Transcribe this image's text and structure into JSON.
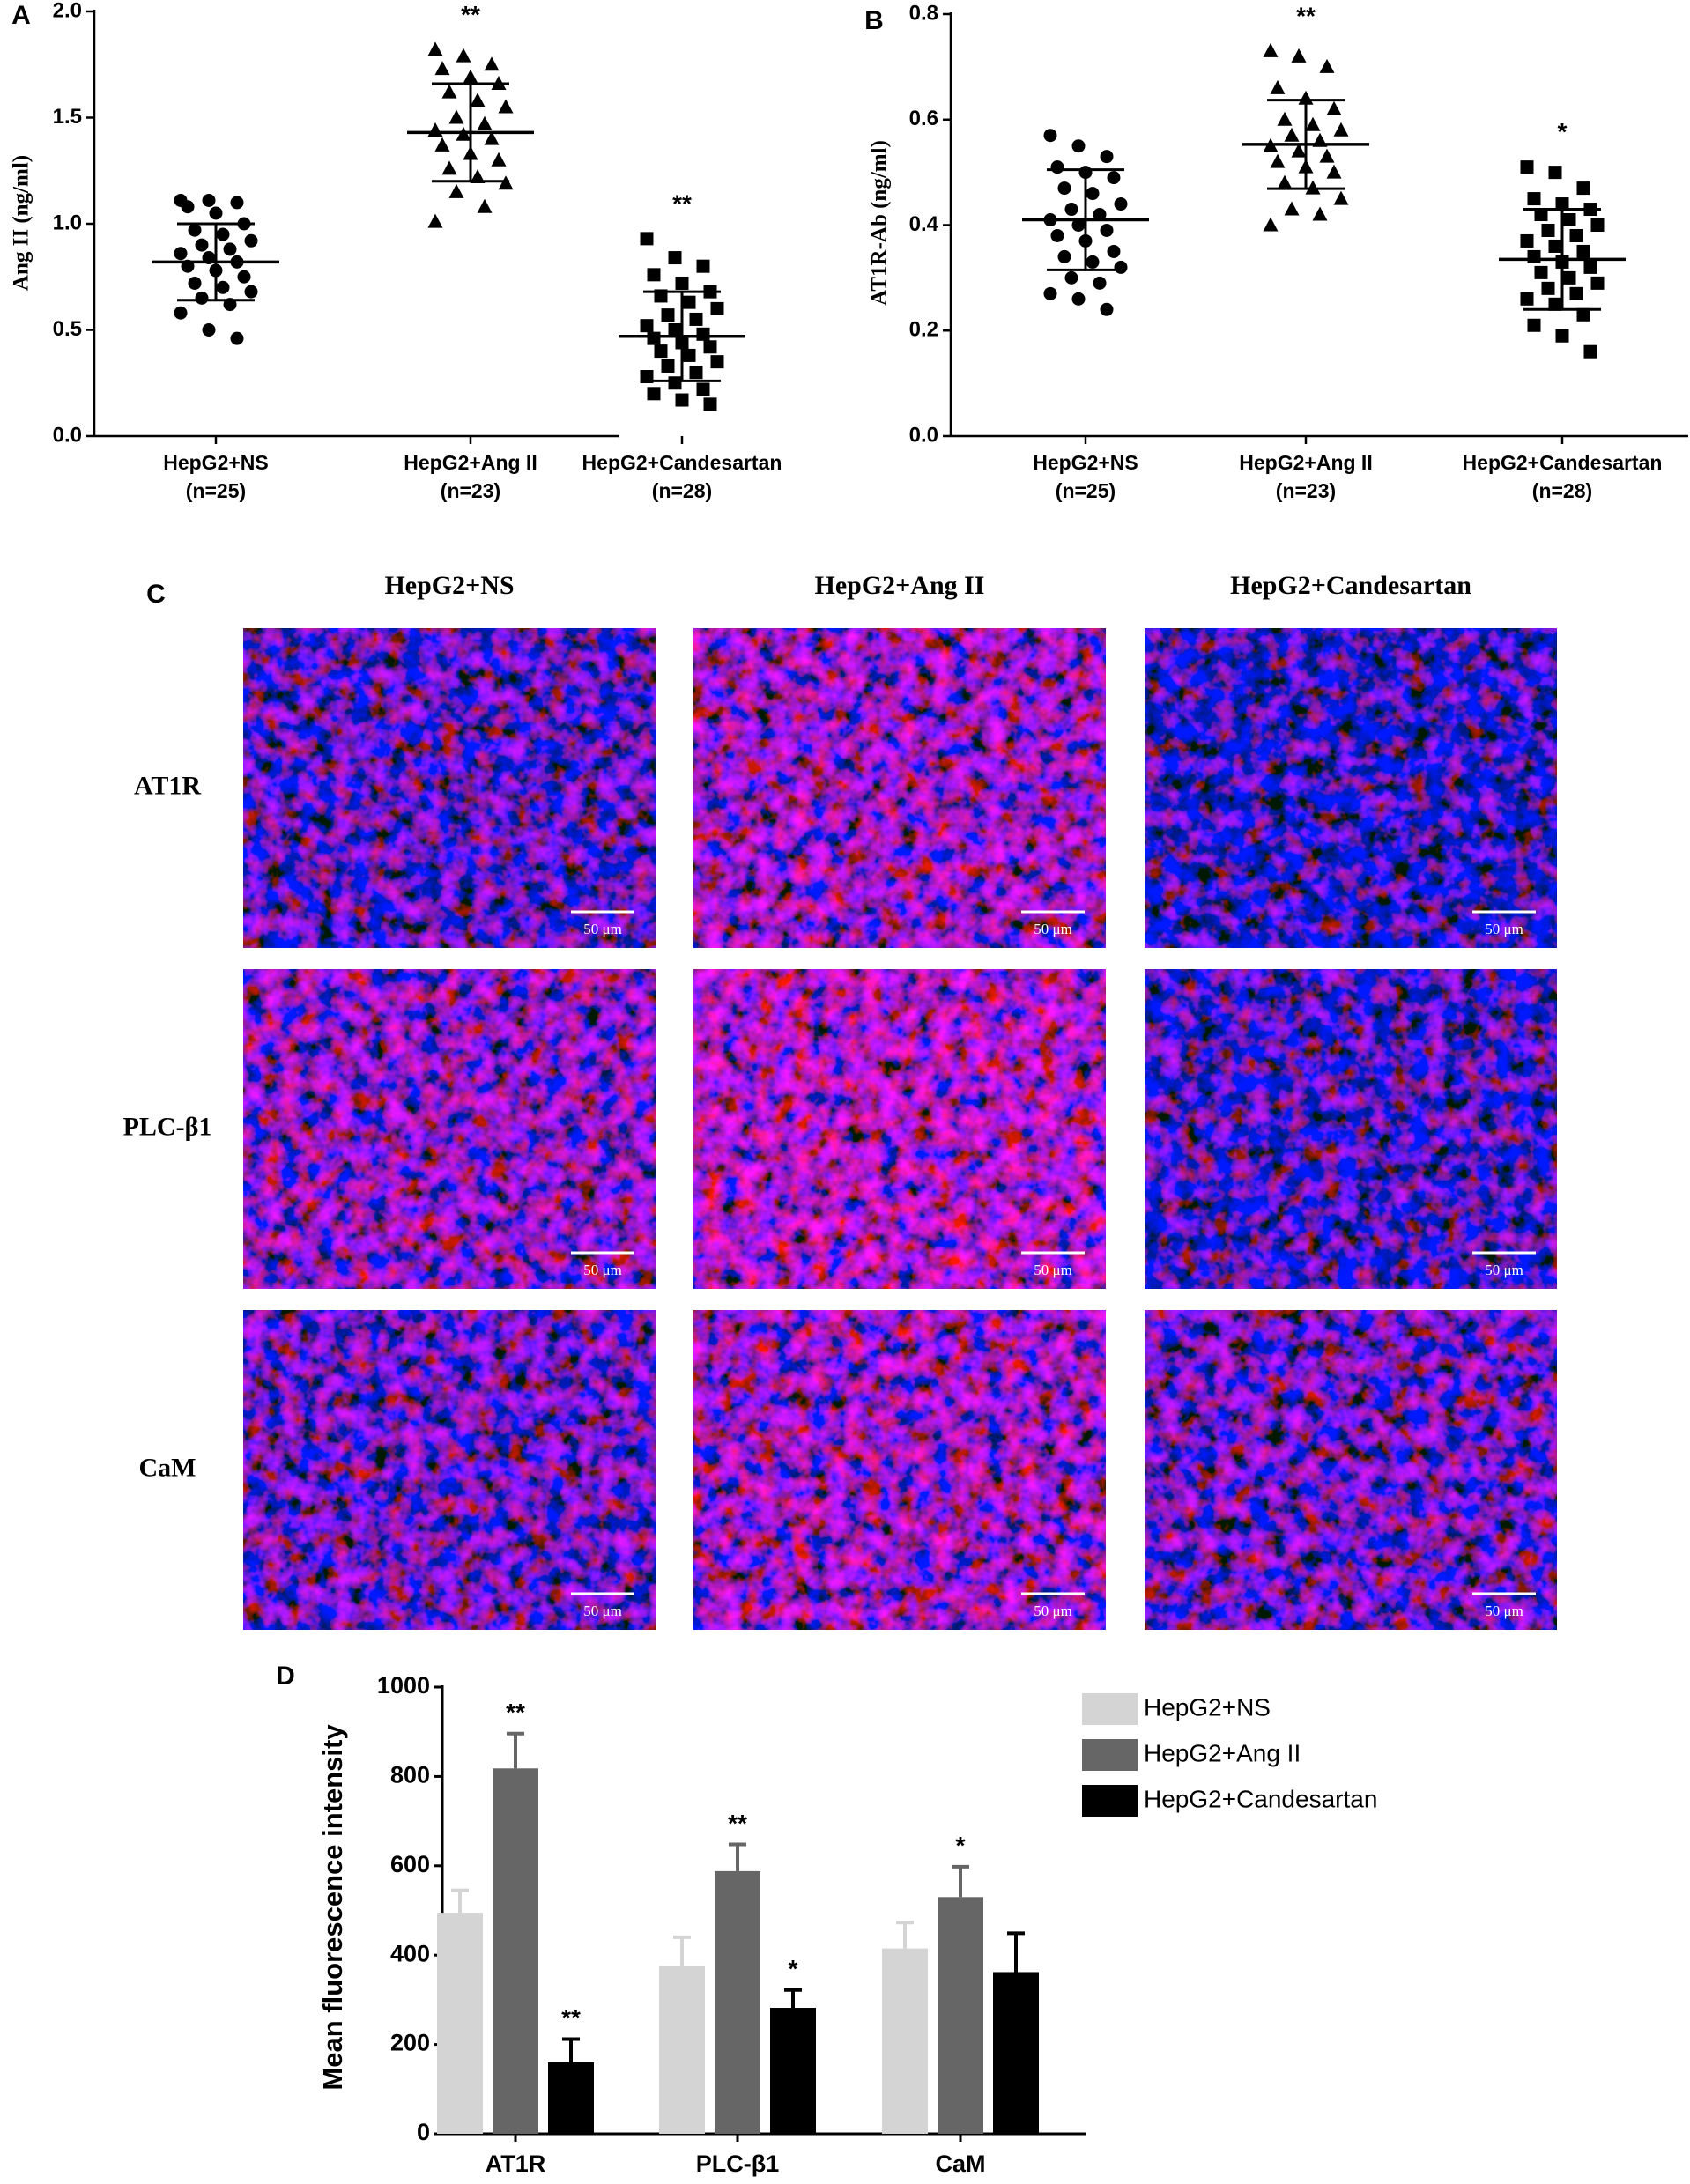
{
  "chart_data": [
    {
      "type": "dotplot",
      "panel_label": "A",
      "y_label": "Ang II (ng/ml)",
      "categories": [
        "HepG2+NS",
        "HepG2+Ang II",
        "HepG2+Candesartan"
      ],
      "n_labels": [
        "(n=25)",
        "(n=23)",
        "(n=28)"
      ],
      "ylim": [
        0,
        2
      ],
      "yticks": [
        {
          "value": 0,
          "label": "0.0"
        },
        0.5,
        {
          "value": 1,
          "label": "1.0"
        },
        1.5,
        {
          "value": 2,
          "label": "2.0"
        }
      ],
      "groups": [
        {
          "marker": "circle",
          "mean": 0.82,
          "sd": 0.18,
          "values": [
            1.11,
            1.11,
            1.1,
            1.08,
            1.05,
            1.0,
            0.97,
            0.95,
            0.92,
            0.9,
            0.88,
            0.86,
            0.84,
            0.82,
            0.8,
            0.78,
            0.75,
            0.72,
            0.7,
            0.68,
            0.65,
            0.62,
            0.58,
            0.5,
            0.46
          ]
        },
        {
          "marker": "triangle",
          "mean": 1.43,
          "sd": 0.23,
          "annotation": "**",
          "values": [
            1.82,
            1.79,
            1.75,
            1.73,
            1.69,
            1.66,
            1.62,
            1.58,
            1.55,
            1.5,
            1.47,
            1.44,
            1.42,
            1.4,
            1.37,
            1.33,
            1.3,
            1.26,
            1.22,
            1.19,
            1.15,
            1.08,
            1.01
          ]
        },
        {
          "marker": "square",
          "mean": 0.47,
          "sd": 0.21,
          "annotation": "**",
          "values": [
            0.93,
            0.84,
            0.8,
            0.76,
            0.72,
            0.68,
            0.66,
            0.63,
            0.6,
            0.57,
            0.55,
            0.52,
            0.5,
            0.48,
            0.46,
            0.44,
            0.42,
            0.4,
            0.38,
            0.35,
            0.33,
            0.3,
            0.28,
            0.25,
            0.22,
            0.2,
            0.17,
            0.15
          ]
        }
      ]
    },
    {
      "type": "dotplot",
      "panel_label": "B",
      "y_label": "AT1R-Ab (ng/ml)",
      "categories": [
        "HepG2+NS",
        "HepG2+Ang II",
        "HepG2+Candesartan"
      ],
      "n_labels": [
        "(n=25)",
        "(n=23)",
        "(n=28)"
      ],
      "ylim": [
        0,
        0.8
      ],
      "yticks": [
        {
          "value": 0,
          "label": "0.0"
        },
        0.2,
        0.4,
        0.6,
        0.8
      ],
      "groups": [
        {
          "marker": "circle",
          "mean": 0.41,
          "sd": 0.095,
          "values": [
            0.57,
            0.55,
            0.53,
            0.51,
            0.5,
            0.49,
            0.47,
            0.46,
            0.44,
            0.43,
            0.42,
            0.41,
            0.4,
            0.39,
            0.38,
            0.37,
            0.35,
            0.34,
            0.33,
            0.32,
            0.3,
            0.29,
            0.27,
            0.26,
            0.24
          ]
        },
        {
          "marker": "triangle",
          "mean": 0.553,
          "sd": 0.084,
          "annotation": "**",
          "values": [
            0.73,
            0.72,
            0.7,
            0.66,
            0.64,
            0.62,
            0.6,
            0.59,
            0.58,
            0.57,
            0.56,
            0.55,
            0.54,
            0.53,
            0.52,
            0.51,
            0.5,
            0.48,
            0.47,
            0.45,
            0.43,
            0.42,
            0.4
          ]
        },
        {
          "marker": "square",
          "mean": 0.335,
          "sd": 0.095,
          "annotation": "*",
          "values": [
            0.51,
            0.5,
            0.47,
            0.45,
            0.44,
            0.43,
            0.42,
            0.41,
            0.4,
            0.39,
            0.38,
            0.37,
            0.36,
            0.35,
            0.34,
            0.33,
            0.32,
            0.31,
            0.3,
            0.29,
            0.28,
            0.27,
            0.26,
            0.25,
            0.23,
            0.21,
            0.19,
            0.16
          ]
        }
      ]
    },
    {
      "type": "bar",
      "panel_label": "D",
      "y_label": "Mean fluorescence intensity",
      "categories": [
        "AT1R",
        "PLC-β1",
        "CaM"
      ],
      "ylim": [
        0,
        1000
      ],
      "yticks": [
        0,
        200,
        400,
        600,
        800,
        1000
      ],
      "series": [
        {
          "name": "HepG2+NS",
          "color": "#d4d4d4",
          "values": [
            495,
            375,
            415
          ],
          "errors": [
            50,
            65,
            58
          ],
          "annotations": [
            null,
            null,
            null
          ]
        },
        {
          "name": "HepG2+Ang II",
          "color": "#666666",
          "values": [
            818,
            588,
            530
          ],
          "errors": [
            78,
            60,
            68
          ],
          "annotations": [
            "**",
            "**",
            "*"
          ]
        },
        {
          "name": "HepG2+Candesartan",
          "color": "#000000",
          "values": [
            160,
            282,
            362
          ],
          "errors": [
            52,
            40,
            87
          ],
          "annotations": [
            "**",
            "*",
            null
          ]
        }
      ]
    }
  ],
  "panel_c": {
    "panel_label": "C",
    "columns": [
      "HepG2+NS",
      "HepG2+Ang II",
      "HepG2+Candesartan"
    ],
    "rows": [
      "AT1R",
      "PLC-β1",
      "CaM"
    ],
    "scale_bar": "50 μm"
  }
}
